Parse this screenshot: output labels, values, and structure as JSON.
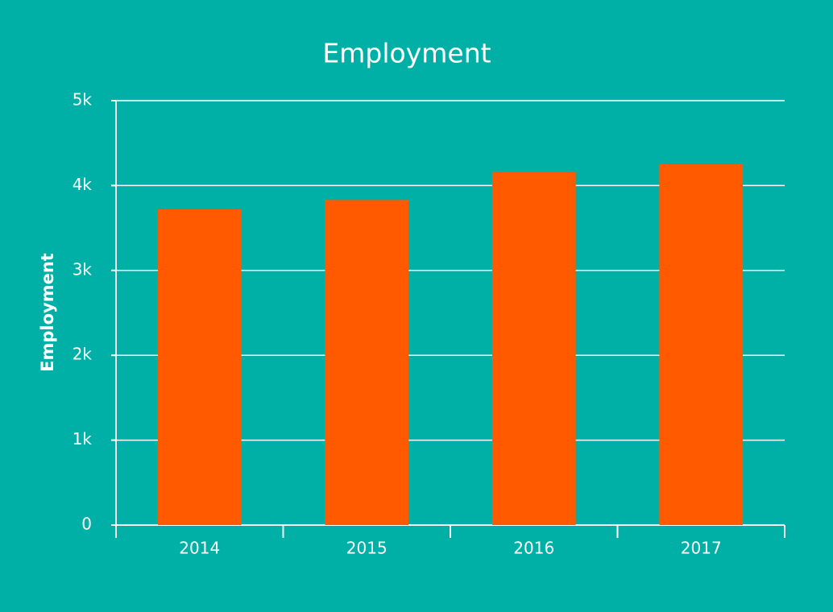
{
  "chart_data": {
    "type": "bar",
    "title": "Employment",
    "y_label": "Employment",
    "categories": [
      "2014",
      "2015",
      "2016",
      "2017"
    ],
    "values": [
      3720,
      3830,
      4160,
      4250
    ],
    "color": "#ff5a00",
    "ylim": [
      0,
      5000
    ],
    "yticks": [
      0,
      {
        "value": 1000,
        "label": "1k"
      },
      {
        "value": 2000,
        "label": "2k"
      },
      {
        "value": 3000,
        "label": "3k"
      },
      {
        "value": 4000,
        "label": "4k"
      },
      {
        "value": 5000,
        "label": "5k"
      }
    ],
    "grid": true
  }
}
